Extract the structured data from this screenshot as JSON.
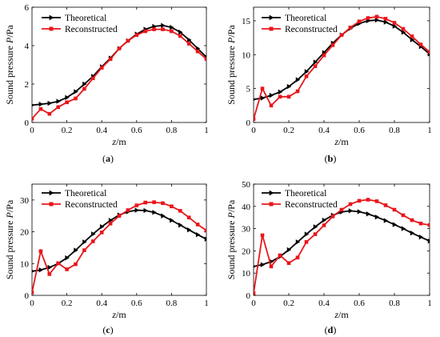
{
  "legend": {
    "theoretical": "Theoretical",
    "reconstructed": "Reconstructed"
  },
  "axis_labels": {
    "x_italic": "z",
    "x_unit": "/m",
    "y_text": "Sound pressure ",
    "y_italic": "P",
    "y_unit": "/Pa"
  },
  "colors": {
    "theoretical": "#000000",
    "reconstructed": "#e8161b"
  },
  "chart_data": [
    {
      "type": "line",
      "label": "(a)",
      "xlim": [
        0,
        1
      ],
      "ylim": [
        0,
        6
      ],
      "xticks": [
        0,
        0.2,
        0.4,
        0.6,
        0.8,
        1
      ],
      "xtick_labels": [
        "0",
        "0.2",
        "0.4",
        "0.6",
        "0.8",
        "1"
      ],
      "yticks": [
        0,
        2,
        4,
        6
      ],
      "ytick_labels": [
        "0",
        "2",
        "4",
        "6"
      ],
      "x": [
        0,
        0.05,
        0.1,
        0.15,
        0.2,
        0.25,
        0.3,
        0.35,
        0.4,
        0.45,
        0.5,
        0.55,
        0.6,
        0.65,
        0.7,
        0.75,
        0.8,
        0.85,
        0.9,
        0.95,
        1
      ],
      "series": [
        {
          "name": "Theoretical",
          "values": [
            0.9,
            0.95,
            1.0,
            1.1,
            1.3,
            1.6,
            2.0,
            2.4,
            2.9,
            3.35,
            3.85,
            4.25,
            4.6,
            4.85,
            5.0,
            5.05,
            4.95,
            4.7,
            4.3,
            3.85,
            3.4
          ]
        },
        {
          "name": "Reconstructed",
          "values": [
            0.2,
            0.7,
            0.45,
            0.8,
            1.05,
            1.25,
            1.75,
            2.3,
            2.85,
            3.3,
            3.85,
            4.25,
            4.55,
            4.75,
            4.85,
            4.85,
            4.75,
            4.5,
            4.1,
            3.7,
            3.3
          ]
        }
      ]
    },
    {
      "type": "line",
      "label": "(b)",
      "xlim": [
        0,
        1
      ],
      "ylim": [
        0,
        17
      ],
      "xticks": [
        0,
        0.2,
        0.4,
        0.6,
        0.8,
        1
      ],
      "xtick_labels": [
        "0",
        "0.2",
        "0.4",
        "0.6",
        "0.8",
        "1"
      ],
      "yticks": [
        0,
        5,
        10,
        15
      ],
      "ytick_labels": [
        "0",
        "5",
        "10",
        "15"
      ],
      "x": [
        0,
        0.05,
        0.1,
        0.15,
        0.2,
        0.25,
        0.3,
        0.35,
        0.4,
        0.45,
        0.5,
        0.55,
        0.6,
        0.65,
        0.7,
        0.75,
        0.8,
        0.85,
        0.9,
        0.95,
        1
      ],
      "series": [
        {
          "name": "Theoretical",
          "values": [
            3.4,
            3.6,
            4.0,
            4.5,
            5.3,
            6.3,
            7.5,
            8.9,
            10.3,
            11.7,
            12.9,
            13.9,
            14.6,
            15.0,
            15.1,
            14.8,
            14.2,
            13.3,
            12.2,
            11.2,
            10.1
          ]
        },
        {
          "name": "Reconstructed",
          "values": [
            0.5,
            5.0,
            2.5,
            3.8,
            3.8,
            4.6,
            6.8,
            8.3,
            9.9,
            11.4,
            12.9,
            14.0,
            14.9,
            15.4,
            15.6,
            15.3,
            14.7,
            13.8,
            12.7,
            11.5,
            10.4
          ]
        }
      ]
    },
    {
      "type": "line",
      "label": "(c)",
      "xlim": [
        0,
        1
      ],
      "ylim": [
        0,
        35
      ],
      "xticks": [
        0,
        0.2,
        0.4,
        0.6,
        0.8,
        1
      ],
      "xtick_labels": [
        "0",
        "0.2",
        "0.4",
        "0.6",
        "0.8",
        "1"
      ],
      "yticks": [
        0,
        10,
        20,
        30
      ],
      "ytick_labels": [
        "0",
        "10",
        "20",
        "30"
      ],
      "x": [
        0,
        0.05,
        0.1,
        0.15,
        0.2,
        0.25,
        0.3,
        0.35,
        0.4,
        0.45,
        0.5,
        0.55,
        0.6,
        0.65,
        0.7,
        0.75,
        0.8,
        0.85,
        0.9,
        0.95,
        1
      ],
      "series": [
        {
          "name": "Theoretical",
          "values": [
            7.6,
            8.0,
            8.8,
            10.0,
            11.8,
            14.2,
            16.8,
            19.3,
            21.6,
            23.6,
            25.3,
            26.3,
            26.8,
            26.7,
            26.1,
            25.0,
            23.6,
            22.1,
            20.6,
            19.1,
            17.7
          ]
        },
        {
          "name": "Reconstructed",
          "values": [
            0.9,
            13.9,
            6.7,
            10.1,
            8.2,
            9.8,
            14.2,
            17.0,
            19.8,
            22.6,
            25.0,
            26.8,
            28.3,
            29.2,
            29.3,
            29.0,
            28.0,
            26.6,
            24.5,
            22.3,
            20.4
          ]
        }
      ]
    },
    {
      "type": "line",
      "label": "(d)",
      "xlim": [
        0,
        1
      ],
      "ylim": [
        0,
        50
      ],
      "xticks": [
        0,
        0.2,
        0.4,
        0.6,
        0.8,
        1
      ],
      "xtick_labels": [
        "0",
        "0.2",
        "0.4",
        "0.6",
        "0.8",
        "1"
      ],
      "yticks": [
        0,
        10,
        20,
        30,
        40,
        50
      ],
      "ytick_labels": [
        "0",
        "10",
        "20",
        "30",
        "40",
        "50"
      ],
      "x": [
        0,
        0.05,
        0.1,
        0.15,
        0.2,
        0.25,
        0.3,
        0.35,
        0.4,
        0.45,
        0.5,
        0.55,
        0.6,
        0.65,
        0.7,
        0.75,
        0.8,
        0.85,
        0.9,
        0.95,
        1
      ],
      "series": [
        {
          "name": "Theoretical",
          "values": [
            13.0,
            13.8,
            15.2,
            17.4,
            20.5,
            24.0,
            27.5,
            30.8,
            33.8,
            36.0,
            37.5,
            38.0,
            37.6,
            36.6,
            35.2,
            33.6,
            31.8,
            30.0,
            28.0,
            26.2,
            24.4
          ]
        },
        {
          "name": "Reconstructed",
          "values": [
            1.0,
            27.0,
            13.0,
            18.0,
            14.5,
            17.0,
            24.0,
            27.5,
            31.5,
            35.5,
            38.5,
            41.0,
            42.5,
            43.0,
            42.3,
            40.5,
            38.5,
            36.0,
            33.8,
            32.3,
            31.6
          ]
        }
      ]
    }
  ]
}
